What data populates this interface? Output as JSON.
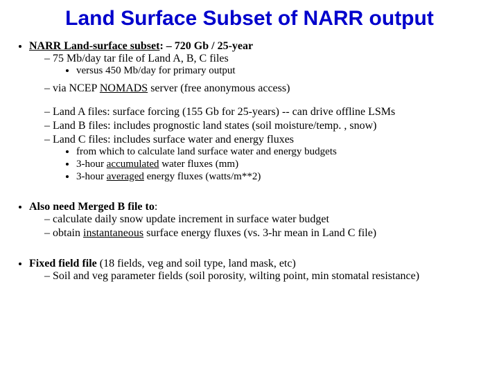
{
  "title": "Land Surface Subset of NARR output",
  "b1": {
    "lead1": "NARR Land-surface subset",
    "lead2": ":  – 720 Gb / 25-year",
    "s1": "75 Mb/day tar file of Land A, B, C files",
    "s1a": "versus 450 Mb/day for primary output",
    "s2a": "via NCEP ",
    "s2u": "NOMADS",
    "s2b": " server (free anonymous access)",
    "s3": "Land A files: surface forcing (155 Gb for 25-years)  -- can drive offline LSMs",
    "s4": "Land B files: includes prognostic land states (soil moisture/temp. , snow)",
    "s5": "Land C files: includes surface water and energy fluxes",
    "s5a": "from which to calculate land surface water and energy budgets",
    "s5b_a": "3-hour ",
    "s5b_u": "accumulated",
    "s5b_b": " water fluxes (mm)",
    "s5c_a": "3-hour ",
    "s5c_u": "averaged",
    "s5c_b": " energy fluxes (watts/m**2)"
  },
  "b2": {
    "lead": "Also need Merged B file to",
    "colon": ":",
    "s1": "calculate daily snow update increment in surface water budget",
    "s2a": "obtain ",
    "s2u": "instantaneous",
    "s2b": " surface energy fluxes (vs. 3-hr mean in Land C file)"
  },
  "b3": {
    "lead": "Fixed field file",
    "rest": " (18 fields, veg and soil type, land mask, etc)",
    "s1": "Soil and veg parameter fields (soil porosity, wilting point, min stomatal resistance)"
  }
}
